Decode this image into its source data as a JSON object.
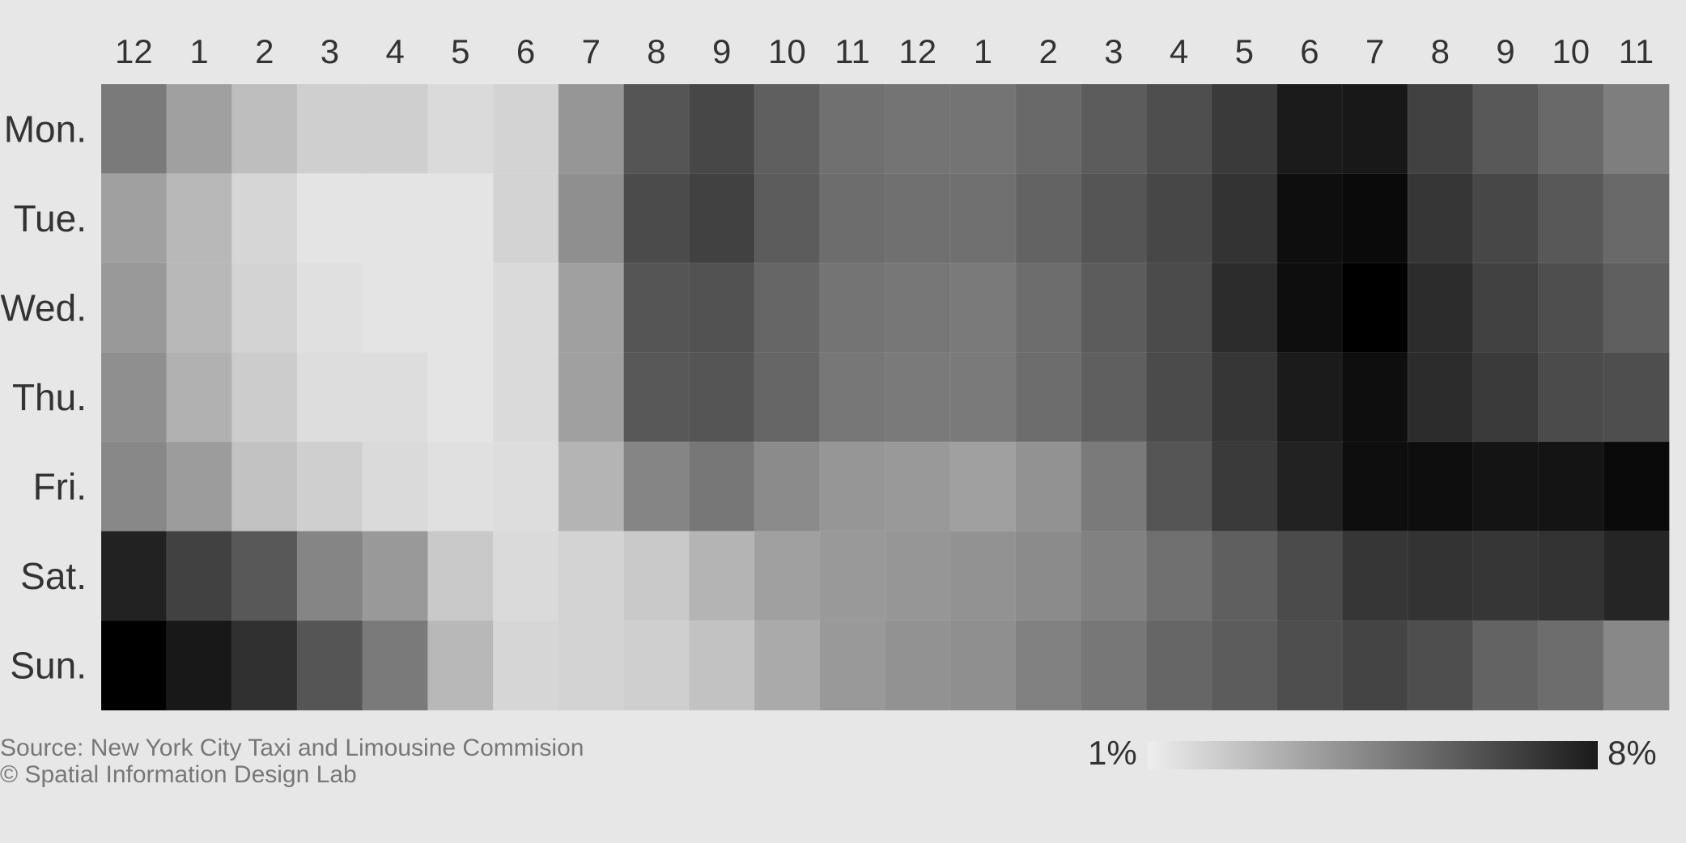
{
  "chart_data": {
    "type": "heatmap",
    "title": "",
    "x_categories": [
      "12",
      "1",
      "2",
      "3",
      "4",
      "5",
      "6",
      "7",
      "8",
      "9",
      "10",
      "11",
      "12",
      "1",
      "2",
      "3",
      "4",
      "5",
      "6",
      "7",
      "8",
      "9",
      "10",
      "11"
    ],
    "y_categories": [
      "Mon.",
      "Tue.",
      "Wed.",
      "Thu.",
      "Fri.",
      "Sat.",
      "Sun."
    ],
    "values": [
      [
        4.4,
        3.3,
        2.4,
        1.9,
        1.9,
        1.6,
        1.8,
        3.6,
        5.5,
        5.9,
        5.2,
        4.7,
        4.6,
        4.6,
        4.9,
        5.3,
        5.7,
        6.3,
        7.2,
        7.3,
        6.1,
        5.4,
        4.9,
        4.3
      ],
      [
        3.3,
        2.6,
        1.7,
        1.3,
        1.3,
        1.3,
        1.8,
        3.8,
        5.8,
        6.1,
        5.3,
        4.8,
        4.7,
        4.7,
        5.1,
        5.5,
        5.9,
        6.5,
        7.6,
        7.7,
        6.4,
        5.9,
        5.4,
        4.9
      ],
      [
        3.5,
        2.6,
        1.8,
        1.4,
        1.3,
        1.3,
        1.6,
        3.3,
        5.5,
        5.6,
        5.0,
        4.6,
        4.5,
        4.4,
        4.8,
        5.3,
        5.8,
        6.7,
        7.6,
        8.0,
        6.7,
        6.1,
        5.7,
        5.2
      ],
      [
        3.8,
        2.8,
        2.0,
        1.5,
        1.5,
        1.3,
        1.6,
        3.3,
        5.4,
        5.5,
        5.0,
        4.5,
        4.4,
        4.4,
        4.8,
        5.2,
        5.8,
        6.4,
        7.2,
        7.6,
        6.7,
        6.3,
        5.8,
        5.7
      ],
      [
        4.0,
        3.4,
        2.3,
        1.9,
        1.6,
        1.4,
        1.5,
        2.7,
        4.1,
        4.5,
        3.9,
        3.6,
        3.5,
        3.3,
        3.7,
        4.4,
        5.5,
        6.3,
        7.0,
        7.6,
        7.6,
        7.4,
        7.4,
        7.7
      ],
      [
        7.0,
        6.1,
        5.4,
        4.1,
        3.5,
        2.1,
        1.6,
        1.8,
        2.1,
        2.7,
        3.3,
        3.5,
        3.6,
        3.7,
        3.9,
        4.2,
        4.7,
        5.2,
        5.8,
        6.4,
        6.5,
        6.4,
        6.5,
        6.9
      ],
      [
        8.0,
        7.3,
        6.6,
        5.5,
        4.4,
        2.6,
        1.7,
        1.8,
        1.9,
        2.3,
        3.0,
        3.5,
        3.7,
        3.8,
        4.2,
        4.5,
        5.0,
        5.3,
        5.7,
        6.0,
        5.7,
        5.1,
        4.8,
        4.0
      ]
    ],
    "value_range": [
      1,
      8
    ],
    "colormap": [
      "#eeeeee",
      "#1a1a1a"
    ],
    "legend": {
      "min_label": "1%",
      "max_label": "8%",
      "placement": "bottom-right"
    }
  },
  "colors": {
    "background": "#e7e7e7",
    "low": "#eeeeee",
    "high": "#000000"
  },
  "footer": {
    "source": "Source: New York City Taxi and Limousine Commision",
    "credit": "© Spatial Information Design Lab"
  }
}
